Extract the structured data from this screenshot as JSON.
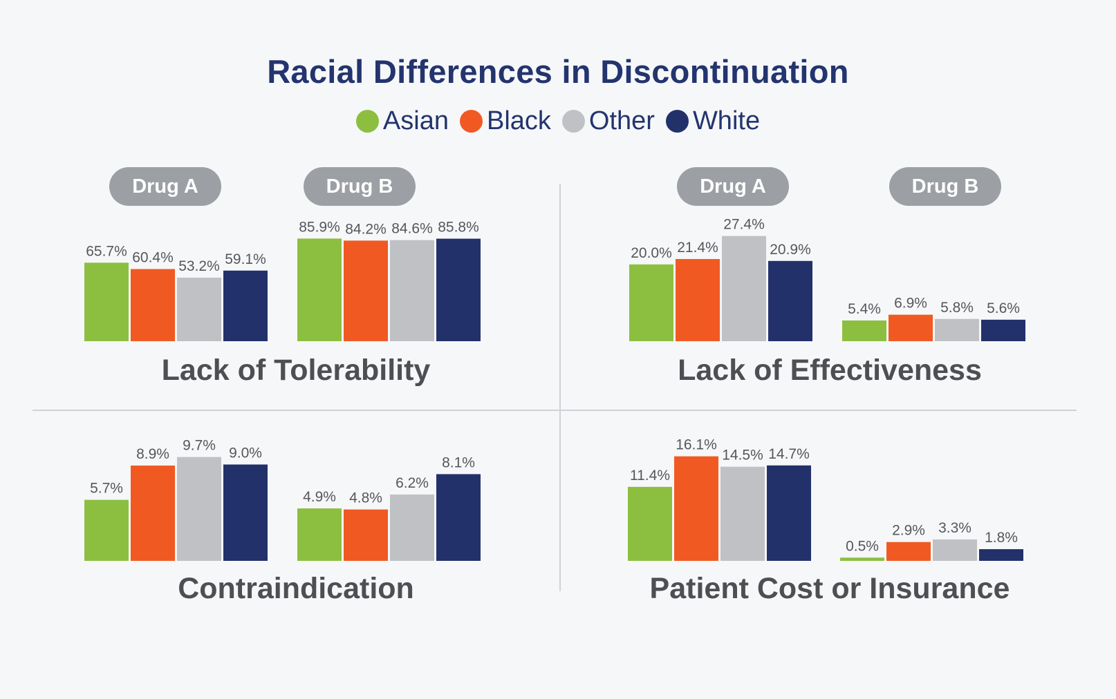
{
  "title": "Racial Differences in Discontinuation",
  "legend": [
    {
      "label": "Asian",
      "color": "#8cbf3f"
    },
    {
      "label": "Black",
      "color": "#f05a22"
    },
    {
      "label": "Other",
      "color": "#bfc1c4"
    },
    {
      "label": "White",
      "color": "#23316a"
    }
  ],
  "pills": {
    "drug_a": "Drug A",
    "drug_b": "Drug B"
  },
  "chart_data": [
    {
      "type": "bar",
      "title": "Lack of Tolerability",
      "categories": [
        "Drug A",
        "Drug B"
      ],
      "series": [
        {
          "name": "Asian",
          "values": [
            65.7,
            85.9
          ]
        },
        {
          "name": "Black",
          "values": [
            60.4,
            84.2
          ]
        },
        {
          "name": "Other",
          "values": [
            53.2,
            84.6
          ]
        },
        {
          "name": "White",
          "values": [
            59.1,
            85.8
          ]
        }
      ],
      "value_labels": [
        [
          "65.7%",
          "60.4%",
          "53.2%",
          "59.1%"
        ],
        [
          "85.9%",
          "84.2%",
          "84.6%",
          "85.8%"
        ]
      ],
      "unit": "%"
    },
    {
      "type": "bar",
      "title": "Lack of Effectiveness",
      "categories": [
        "Drug A",
        "Drug B"
      ],
      "series": [
        {
          "name": "Asian",
          "values": [
            20.0,
            5.4
          ]
        },
        {
          "name": "Black",
          "values": [
            21.4,
            6.9
          ]
        },
        {
          "name": "Other",
          "values": [
            27.4,
            5.8
          ]
        },
        {
          "name": "White",
          "values": [
            20.9,
            5.6
          ]
        }
      ],
      "value_labels": [
        [
          "20.0%",
          "21.4%",
          "27.4%",
          "20.9%"
        ],
        [
          "5.4%",
          "6.9%",
          "5.8%",
          "5.6%"
        ]
      ],
      "unit": "%"
    },
    {
      "type": "bar",
      "title": "Contraindication",
      "categories": [
        "Drug A",
        "Drug B"
      ],
      "series": [
        {
          "name": "Asian",
          "values": [
            5.7,
            4.9
          ]
        },
        {
          "name": "Black",
          "values": [
            8.9,
            4.8
          ]
        },
        {
          "name": "Other",
          "values": [
            9.7,
            6.2
          ]
        },
        {
          "name": "White",
          "values": [
            9.0,
            8.1
          ]
        }
      ],
      "value_labels": [
        [
          "5.7%",
          "8.9%",
          "9.7%",
          "9.0%"
        ],
        [
          "4.9%",
          "4.8%",
          "6.2%",
          "8.1%"
        ]
      ],
      "unit": "%"
    },
    {
      "type": "bar",
      "title": "Patient Cost or Insurance",
      "categories": [
        "Drug A",
        "Drug B"
      ],
      "series": [
        {
          "name": "Asian",
          "values": [
            11.4,
            0.5
          ]
        },
        {
          "name": "Black",
          "values": [
            16.1,
            2.9
          ]
        },
        {
          "name": "Other",
          "values": [
            14.5,
            3.3
          ]
        },
        {
          "name": "White",
          "values": [
            14.7,
            1.8
          ]
        }
      ],
      "value_labels": [
        [
          "11.4%",
          "16.1%",
          "14.5%",
          "14.7%"
        ],
        [
          "0.5%",
          "2.9%",
          "3.3%",
          "1.8%"
        ]
      ],
      "unit": "%"
    }
  ]
}
